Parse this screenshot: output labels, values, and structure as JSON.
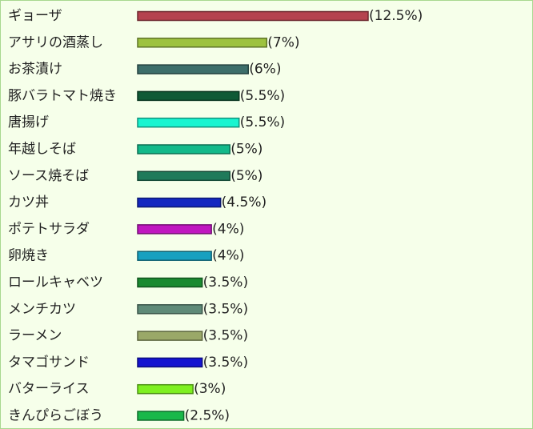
{
  "chart_data": {
    "type": "bar",
    "orientation": "horizontal",
    "categories": [
      "ギョーザ",
      "アサリの酒蒸し",
      "お茶漬け",
      "豚バラトマト焼き",
      "唐揚げ",
      "年越しそば",
      "ソース焼そば",
      "カツ丼",
      "ポテトサラダ",
      "卵焼き",
      "ロールキャベツ",
      "メンチカツ",
      "ラーメン",
      "タマゴサンド",
      "バターライス",
      "きんぴらごぼう"
    ],
    "values": [
      12.5,
      7,
      6,
      5.5,
      5.5,
      5,
      5,
      4.5,
      4,
      4,
      3.5,
      3.5,
      3.5,
      3.5,
      3,
      2.5
    ],
    "value_labels": [
      "(12.5%)",
      "(7%)",
      "(6%)",
      "(5.5%)",
      "(5.5%)",
      "(5%)",
      "(5%)",
      "(4.5%)",
      "(4%)",
      "(4%)",
      "(3.5%)",
      "(3.5%)",
      "(3.5%)",
      "(3.5%)",
      "(3%)",
      "(2.5%)"
    ],
    "colors": [
      "#b5434f",
      "#9dc23f",
      "#3d6e6a",
      "#0f5a36",
      "#19f5d0",
      "#13b98a",
      "#1f7a5a",
      "#1428c0",
      "#c017c0",
      "#17a0c0",
      "#1a8a30",
      "#5f8a78",
      "#9aa868",
      "#1414d0",
      "#7ef020",
      "#1ab84a"
    ]
  }
}
